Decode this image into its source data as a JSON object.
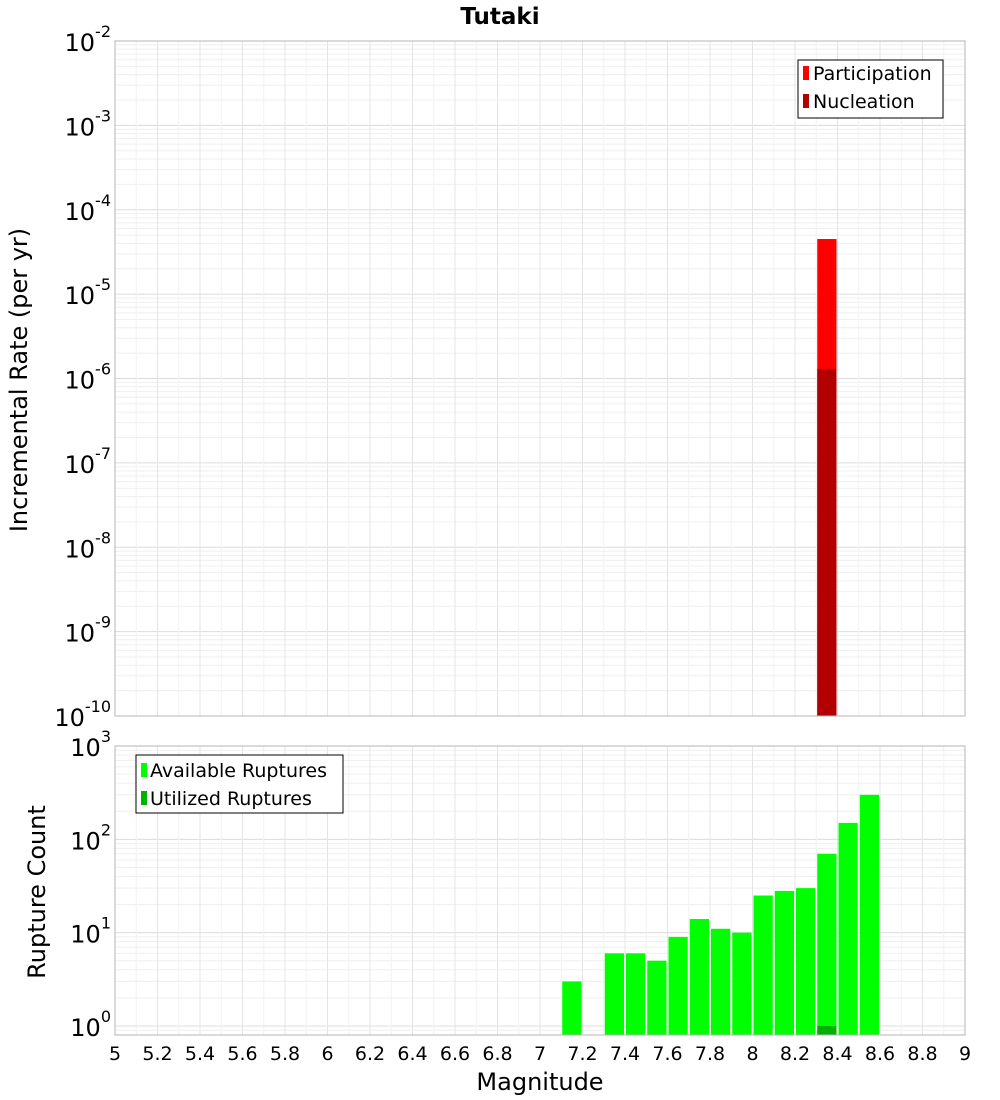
{
  "chart_data": [
    {
      "type": "bar",
      "title": "Tutaki",
      "ylabel": "Incremental Rate (per yr)",
      "y_scale": "log",
      "ylim": [
        1e-10,
        0.01
      ],
      "y_ticks": [
        {
          "base": "10",
          "exp": "-10"
        },
        {
          "base": "10",
          "exp": "-9"
        },
        {
          "base": "10",
          "exp": "-8"
        },
        {
          "base": "10",
          "exp": "-7"
        },
        {
          "base": "10",
          "exp": "-6"
        },
        {
          "base": "10",
          "exp": "-5"
        },
        {
          "base": "10",
          "exp": "-4"
        },
        {
          "base": "10",
          "exp": "-3"
        },
        {
          "base": "10",
          "exp": "-2"
        }
      ],
      "xlim": [
        5,
        9
      ],
      "grid": true,
      "legend_position": "top-right",
      "series": [
        {
          "name": "Participation",
          "color": "#ff0000",
          "points": [
            {
              "x": 8.35,
              "y": 4.5e-05
            }
          ]
        },
        {
          "name": "Nucleation",
          "color": "#b20000",
          "points": [
            {
              "x": 8.35,
              "y": 1.3e-06
            }
          ]
        }
      ]
    },
    {
      "type": "bar",
      "xlabel": "Magnitude",
      "ylabel": "Rupture Count",
      "y_scale": "log",
      "ylim": [
        0.8,
        1000
      ],
      "y_ticks": [
        {
          "base": "10",
          "exp": "0"
        },
        {
          "base": "10",
          "exp": "1"
        },
        {
          "base": "10",
          "exp": "2"
        },
        {
          "base": "10",
          "exp": "3"
        }
      ],
      "xlim": [
        5,
        9
      ],
      "x_ticks": [
        "5",
        "5.2",
        "5.4",
        "5.6",
        "5.8",
        "6",
        "6.2",
        "6.4",
        "6.6",
        "6.8",
        "7",
        "7.2",
        "7.4",
        "7.6",
        "7.8",
        "8",
        "8.2",
        "8.4",
        "8.6",
        "8.8",
        "9"
      ],
      "grid": true,
      "legend_position": "top-left",
      "series": [
        {
          "name": "Available Ruptures",
          "color": "#00ff00",
          "points": [
            {
              "x": 7.15,
              "y": 3
            },
            {
              "x": 7.35,
              "y": 6
            },
            {
              "x": 7.45,
              "y": 6
            },
            {
              "x": 7.55,
              "y": 5
            },
            {
              "x": 7.65,
              "y": 9
            },
            {
              "x": 7.75,
              "y": 14
            },
            {
              "x": 7.85,
              "y": 11
            },
            {
              "x": 7.95,
              "y": 10
            },
            {
              "x": 8.05,
              "y": 25
            },
            {
              "x": 8.15,
              "y": 28
            },
            {
              "x": 8.25,
              "y": 30
            },
            {
              "x": 8.35,
              "y": 70
            },
            {
              "x": 8.45,
              "y": 150
            },
            {
              "x": 8.55,
              "y": 300
            }
          ]
        },
        {
          "name": "Utilized Ruptures",
          "color": "#00b200",
          "points": [
            {
              "x": 8.35,
              "y": 1
            }
          ]
        }
      ]
    }
  ]
}
